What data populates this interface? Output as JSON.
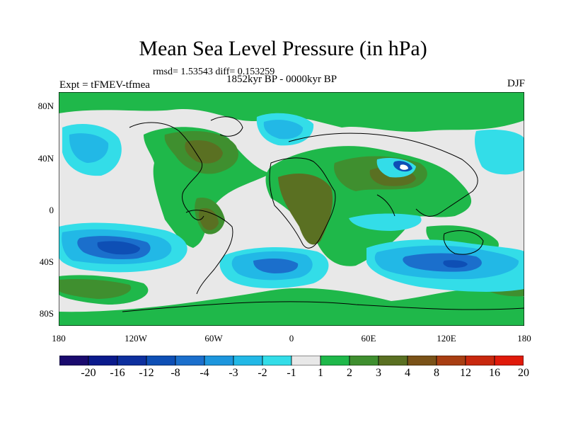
{
  "header": {
    "title": "Mean Sea Level Pressure (in hPa)",
    "stats": "rmsd= 1.53543 diff= 0.153259",
    "experiment": "Expt = tFMEV-tfmea",
    "period": "1852kyr BP - 0000kyr BP",
    "season": "DJF"
  },
  "axes": {
    "lat_labels": [
      "80N",
      "40N",
      "0",
      "40S",
      "80S"
    ],
    "lon_labels": [
      "180",
      "120W",
      "60W",
      "0",
      "60E",
      "120E",
      "180"
    ]
  },
  "colorbar": {
    "labels": [
      "-20",
      "-16",
      "-12",
      "-8",
      "-4",
      "-3",
      "-2",
      "-1",
      "1",
      "2",
      "3",
      "4",
      "8",
      "12",
      "16",
      "20"
    ],
    "colors": [
      "#1a0a6e",
      "#0a1a8c",
      "#0d2f9e",
      "#0e4fb5",
      "#1b6fcc",
      "#1d96dd",
      "#22b8e6",
      "#33dde8",
      "#e8e8e8",
      "#1fb84a",
      "#3f8f2f",
      "#5a7022",
      "#7a5218",
      "#a83e12",
      "#c8280e",
      "#e01a0a"
    ]
  },
  "legend": {
    "neutral_fill": "#e8e8e8",
    "coast_color": "#000000"
  }
}
